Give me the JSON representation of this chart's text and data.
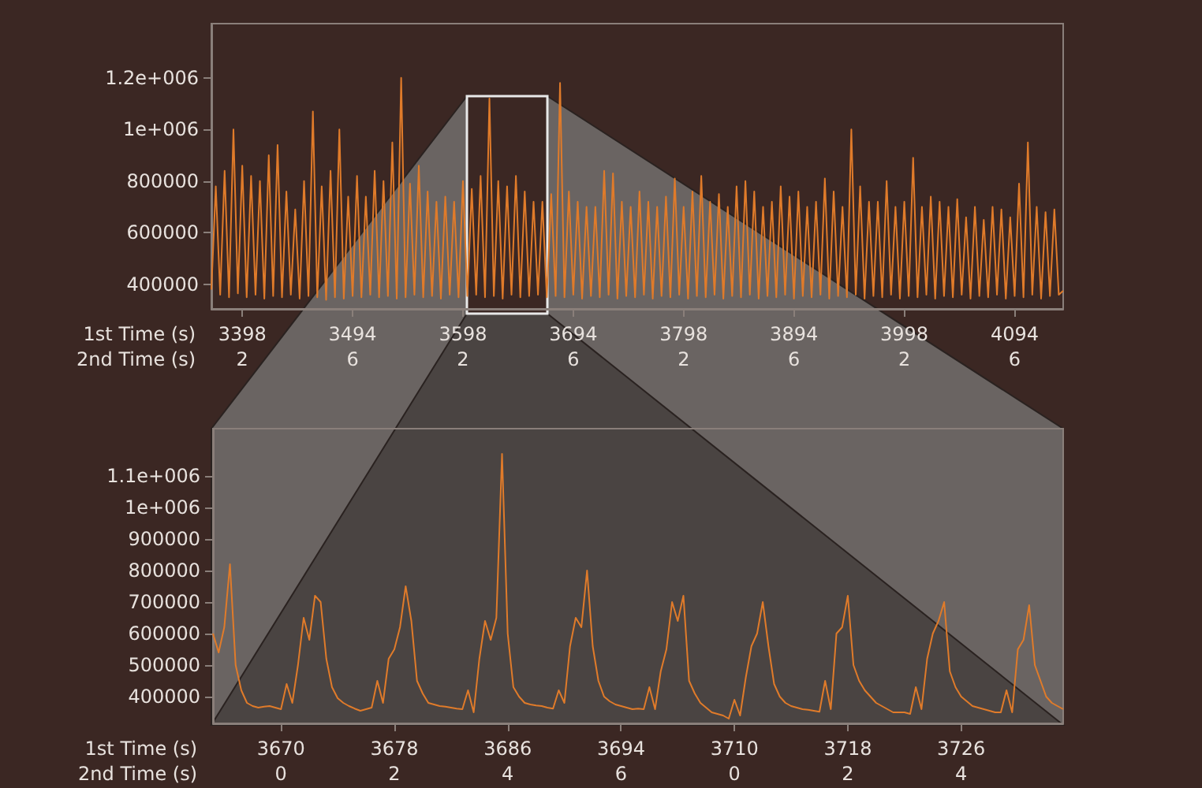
{
  "chart_data": [
    {
      "type": "line",
      "xlabel": "1st Time (s)\n2nd Time (s)",
      "ylim": [
        305000,
        1410000
      ],
      "categories": [
        null,
        null,
        null,
        null,
        null,
        null,
        null,
        "3398\n2",
        null,
        null,
        null,
        null,
        null,
        null,
        null,
        null,
        null,
        null,
        null,
        null,
        null,
        null,
        null,
        null,
        null,
        null,
        null,
        null,
        null,
        null,
        null,
        null,
        "3494\n6",
        null,
        null,
        null,
        null,
        null,
        null,
        null,
        null,
        null,
        null,
        null,
        null,
        null,
        null,
        null,
        null,
        null,
        null,
        null,
        null,
        null,
        null,
        null,
        null,
        "3598\n2",
        null,
        null,
        null,
        null,
        null,
        null,
        null,
        null,
        null,
        null,
        null,
        null,
        null,
        null,
        null,
        null,
        null,
        null,
        null,
        null,
        null,
        null,
        null,
        null,
        "3694\n6",
        null,
        null,
        null,
        null,
        null,
        null,
        null,
        null,
        null,
        null,
        null,
        null,
        null,
        null,
        null,
        null,
        null,
        null,
        null,
        null,
        null,
        null,
        null,
        null,
        "3798\n2",
        null,
        null,
        null,
        null,
        null,
        null,
        null,
        null,
        null,
        null,
        null,
        null,
        null,
        null,
        null,
        null,
        null,
        null,
        null,
        null,
        null,
        null,
        null,
        null,
        "3894\n6",
        null,
        null,
        null,
        null,
        null,
        null,
        null,
        null,
        null,
        null,
        null,
        null,
        null,
        null,
        null,
        null,
        null,
        null,
        null,
        null,
        null,
        null,
        null,
        null,
        "3998\n2",
        null,
        null,
        null,
        null,
        null,
        null,
        null,
        null,
        null,
        null,
        null,
        null,
        null,
        null,
        null,
        null,
        null,
        null,
        null,
        null,
        null,
        null,
        null,
        null,
        "4094\n6",
        null,
        null,
        null,
        null,
        null,
        null,
        null,
        null,
        null,
        null,
        null
      ],
      "yticks": [
        400000,
        600000,
        800000,
        {
          "value": 1000000,
          "label": "1e+006"
        },
        {
          "value": 1200000,
          "label": "1.2e+006"
        }
      ],
      "marker": "none",
      "series": [
        {
          "color": "#e07b2a",
          "values": [
            380000,
            780000,
            360000,
            840000,
            350000,
            1000000,
            365000,
            860000,
            350000,
            820000,
            360000,
            800000,
            345000,
            900000,
            355000,
            940000,
            350000,
            760000,
            360000,
            690000,
            345000,
            800000,
            355000,
            1070000,
            350000,
            780000,
            340000,
            840000,
            350000,
            1000000,
            345000,
            740000,
            355000,
            820000,
            350000,
            740000,
            360000,
            840000,
            350000,
            800000,
            355000,
            950000,
            345000,
            1200000,
            350000,
            790000,
            360000,
            860000,
            350000,
            760000,
            355000,
            720000,
            345000,
            740000,
            360000,
            720000,
            350000,
            800000,
            355000,
            770000,
            360000,
            820000,
            350000,
            1120000,
            355000,
            800000,
            345000,
            780000,
            360000,
            820000,
            350000,
            760000,
            355000,
            720000,
            360000,
            720000,
            350000,
            750000,
            355000,
            1180000,
            350000,
            760000,
            360000,
            720000,
            345000,
            700000,
            355000,
            700000,
            350000,
            840000,
            360000,
            830000,
            345000,
            720000,
            355000,
            700000,
            350000,
            760000,
            360000,
            720000,
            345000,
            700000,
            355000,
            740000,
            350000,
            810000,
            360000,
            700000,
            345000,
            760000,
            355000,
            820000,
            350000,
            720000,
            360000,
            750000,
            345000,
            700000,
            355000,
            780000,
            350000,
            800000,
            360000,
            760000,
            345000,
            700000,
            355000,
            720000,
            350000,
            780000,
            360000,
            740000,
            345000,
            760000,
            355000,
            700000,
            350000,
            720000,
            360000,
            810000,
            345000,
            760000,
            355000,
            700000,
            350000,
            1000000,
            360000,
            780000,
            345000,
            720000,
            355000,
            720000,
            350000,
            800000,
            360000,
            700000,
            345000,
            720000,
            355000,
            890000,
            350000,
            700000,
            360000,
            740000,
            345000,
            720000,
            355000,
            700000,
            350000,
            730000,
            360000,
            660000,
            345000,
            700000,
            355000,
            650000,
            350000,
            700000,
            360000,
            690000,
            345000,
            660000,
            355000,
            790000,
            350000,
            950000,
            360000,
            700000,
            345000,
            680000,
            355000,
            690000,
            360000,
            375000
          ]
        }
      ]
    },
    {
      "type": "line",
      "xlabel": "1st Time (s)\n2nd Time (s)",
      "ylim": [
        315000,
        1250000
      ],
      "categories": [
        null,
        null,
        null,
        null,
        null,
        null,
        null,
        null,
        null,
        null,
        null,
        null,
        "3670\n0",
        null,
        null,
        null,
        null,
        null,
        null,
        null,
        null,
        null,
        null,
        null,
        null,
        null,
        null,
        null,
        null,
        null,
        null,
        null,
        "3678\n2",
        null,
        null,
        null,
        null,
        null,
        null,
        null,
        null,
        null,
        null,
        null,
        null,
        null,
        null,
        null,
        null,
        null,
        null,
        null,
        "3686\n4",
        null,
        null,
        null,
        null,
        null,
        null,
        null,
        null,
        null,
        null,
        null,
        null,
        null,
        null,
        null,
        null,
        null,
        null,
        null,
        "3694\n6",
        null,
        null,
        null,
        null,
        null,
        null,
        null,
        null,
        null,
        null,
        null,
        null,
        null,
        null,
        null,
        null,
        null,
        null,
        null,
        "3710\n0",
        null,
        null,
        null,
        null,
        null,
        null,
        null,
        null,
        null,
        null,
        null,
        null,
        null,
        null,
        null,
        null,
        null,
        null,
        null,
        "3718\n2",
        null,
        null,
        null,
        null,
        null,
        null,
        null,
        null,
        null,
        null,
        null,
        null,
        null,
        null,
        null,
        null,
        null,
        null,
        null,
        "3726\n4",
        null,
        null,
        null,
        null,
        null,
        null,
        null,
        null,
        null,
        null,
        null,
        null,
        null,
        null,
        null,
        null,
        null,
        null
      ],
      "yticks": [
        400000,
        500000,
        600000,
        700000,
        800000,
        900000,
        {
          "value": 1000000,
          "label": "1e+006"
        },
        {
          "value": 1100000,
          "label": "1.1e+006"
        }
      ],
      "marker": "none",
      "series": [
        {
          "color": "#e07b2a",
          "values": [
            600000,
            540000,
            620000,
            820000,
            500000,
            420000,
            380000,
            370000,
            365000,
            368000,
            370000,
            365000,
            360000,
            440000,
            380000,
            500000,
            650000,
            580000,
            720000,
            700000,
            520000,
            430000,
            395000,
            380000,
            370000,
            362000,
            355000,
            360000,
            365000,
            450000,
            380000,
            520000,
            550000,
            620000,
            750000,
            640000,
            450000,
            410000,
            380000,
            375000,
            370000,
            368000,
            365000,
            362000,
            360000,
            420000,
            350000,
            520000,
            640000,
            580000,
            650000,
            1170000,
            600000,
            430000,
            400000,
            380000,
            375000,
            372000,
            370000,
            365000,
            362000,
            420000,
            380000,
            560000,
            650000,
            620000,
            800000,
            560000,
            450000,
            400000,
            385000,
            375000,
            370000,
            365000,
            360000,
            362000,
            360000,
            430000,
            360000,
            480000,
            550000,
            700000,
            640000,
            720000,
            450000,
            410000,
            380000,
            365000,
            350000,
            345000,
            340000,
            330000,
            390000,
            340000,
            460000,
            560000,
            600000,
            700000,
            560000,
            440000,
            400000,
            380000,
            370000,
            365000,
            360000,
            358000,
            355000,
            352000,
            450000,
            360000,
            600000,
            620000,
            720000,
            500000,
            450000,
            420000,
            400000,
            380000,
            370000,
            360000,
            350000,
            350000,
            350000,
            345000,
            430000,
            360000,
            520000,
            600000,
            640000,
            700000,
            480000,
            430000,
            400000,
            385000,
            370000,
            365000,
            360000,
            355000,
            350000,
            350000,
            420000,
            350000,
            550000,
            580000,
            690000,
            500000,
            450000,
            400000,
            380000,
            370000,
            360000
          ]
        }
      ]
    }
  ]
}
